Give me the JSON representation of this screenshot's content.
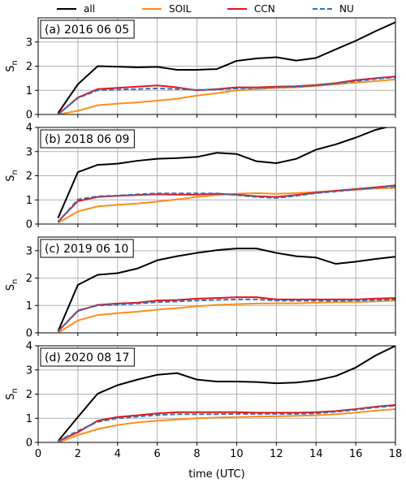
{
  "chart_data": {
    "type": "line",
    "xlabel": "time (UTC)",
    "ylabel": "S",
    "ylabel_subscript": "n",
    "xlim": [
      0,
      18
    ],
    "xticks": [
      "0",
      "2",
      "4",
      "6",
      "8",
      "10",
      "12",
      "14",
      "16",
      "18"
    ],
    "grid": true,
    "legend": {
      "placement": "top",
      "entries": [
        {
          "name": "all",
          "color": "#000000",
          "dash": "solid"
        },
        {
          "name": "SOIL",
          "color": "#ff8c1a",
          "dash": "solid"
        },
        {
          "name": "CCN",
          "color": "#e8101a",
          "dash": "solid"
        },
        {
          "name": "NU",
          "color": "#2f74b5",
          "dash": "dashed"
        }
      ]
    },
    "x": [
      1,
      2,
      3,
      4,
      5,
      6,
      7,
      8,
      9,
      10,
      11,
      12,
      13,
      14,
      15,
      16,
      17,
      18
    ],
    "panels": [
      {
        "label": "(a) 2016 06 05",
        "ylim": [
          0,
          4
        ],
        "yticks": [
          "0",
          "1",
          "2",
          "3"
        ],
        "series": [
          {
            "name": "all",
            "values": [
              0.05,
              1.25,
              2.0,
              1.98,
              1.95,
              1.97,
              1.85,
              1.85,
              1.88,
              2.22,
              2.32,
              2.37,
              2.23,
              2.34,
              2.7,
              3.05,
              3.45,
              3.82
            ]
          },
          {
            "name": "SOIL",
            "values": [
              0.0,
              0.15,
              0.38,
              0.45,
              0.5,
              0.57,
              0.65,
              0.78,
              0.88,
              1.0,
              1.05,
              1.1,
              1.12,
              1.18,
              1.25,
              1.32,
              1.38,
              1.45
            ]
          },
          {
            "name": "CCN",
            "values": [
              0.0,
              0.7,
              1.05,
              1.1,
              1.15,
              1.2,
              1.12,
              1.0,
              1.05,
              1.12,
              1.12,
              1.15,
              1.17,
              1.22,
              1.3,
              1.42,
              1.5,
              1.57
            ]
          },
          {
            "name": "NU",
            "values": [
              0.0,
              0.68,
              1.0,
              1.03,
              1.05,
              1.08,
              1.05,
              1.02,
              1.03,
              1.08,
              1.1,
              1.12,
              1.15,
              1.2,
              1.28,
              1.38,
              1.47,
              1.54
            ]
          }
        ]
      },
      {
        "label": "(b) 2018 06 09",
        "ylim": [
          0,
          4
        ],
        "yticks": [
          "0",
          "1",
          "2",
          "3",
          "4"
        ],
        "series": [
          {
            "name": "all",
            "values": [
              0.25,
              2.15,
              2.45,
              2.5,
              2.62,
              2.7,
              2.73,
              2.78,
              2.95,
              2.9,
              2.6,
              2.52,
              2.7,
              3.08,
              3.3,
              3.58,
              3.9,
              4.1
            ]
          },
          {
            "name": "SOIL",
            "values": [
              0.05,
              0.52,
              0.73,
              0.8,
              0.85,
              0.93,
              1.02,
              1.12,
              1.2,
              1.25,
              1.28,
              1.25,
              1.28,
              1.33,
              1.37,
              1.42,
              1.47,
              1.5
            ]
          },
          {
            "name": "CCN",
            "values": [
              0.1,
              0.95,
              1.12,
              1.17,
              1.2,
              1.23,
              1.22,
              1.22,
              1.25,
              1.22,
              1.15,
              1.12,
              1.2,
              1.3,
              1.38,
              1.45,
              1.52,
              1.6
            ]
          },
          {
            "name": "NU",
            "values": [
              0.08,
              1.02,
              1.15,
              1.18,
              1.23,
              1.27,
              1.27,
              1.27,
              1.27,
              1.2,
              1.12,
              1.08,
              1.17,
              1.28,
              1.35,
              1.43,
              1.5,
              1.57
            ]
          }
        ]
      },
      {
        "label": "(c) 2019 06 10",
        "ylim": [
          0,
          3.5
        ],
        "yticks": [
          "0",
          "1",
          "2",
          "3"
        ],
        "series": [
          {
            "name": "all",
            "values": [
              0.05,
              1.75,
              2.12,
              2.18,
              2.35,
              2.65,
              2.8,
              2.92,
              3.02,
              3.08,
              3.08,
              2.92,
              2.8,
              2.75,
              2.52,
              2.6,
              2.7,
              2.78
            ]
          },
          {
            "name": "SOIL",
            "values": [
              0.0,
              0.45,
              0.65,
              0.72,
              0.77,
              0.85,
              0.9,
              0.97,
              1.02,
              1.05,
              1.07,
              1.08,
              1.08,
              1.1,
              1.12,
              1.12,
              1.15,
              1.18
            ]
          },
          {
            "name": "CCN",
            "values": [
              0.05,
              0.8,
              1.02,
              1.07,
              1.1,
              1.18,
              1.2,
              1.25,
              1.27,
              1.3,
              1.3,
              1.22,
              1.22,
              1.22,
              1.22,
              1.22,
              1.25,
              1.27
            ]
          },
          {
            "name": "NU",
            "values": [
              0.05,
              0.82,
              1.0,
              1.03,
              1.07,
              1.12,
              1.15,
              1.18,
              1.2,
              1.22,
              1.22,
              1.18,
              1.17,
              1.17,
              1.17,
              1.18,
              1.2,
              1.22
            ]
          }
        ]
      },
      {
        "label": "(d) 2020 08 17",
        "ylim": [
          0,
          4
        ],
        "yticks": [
          "0",
          "1",
          "2",
          "3",
          "4"
        ],
        "series": [
          {
            "name": "all",
            "values": [
              0.05,
              1.05,
              2.02,
              2.37,
              2.6,
              2.8,
              2.87,
              2.6,
              2.52,
              2.52,
              2.5,
              2.45,
              2.48,
              2.57,
              2.75,
              3.1,
              3.6,
              4.0
            ]
          },
          {
            "name": "SOIL",
            "values": [
              0.0,
              0.3,
              0.55,
              0.72,
              0.83,
              0.9,
              0.95,
              1.0,
              1.03,
              1.05,
              1.07,
              1.08,
              1.1,
              1.12,
              1.17,
              1.23,
              1.32,
              1.38
            ]
          },
          {
            "name": "CCN",
            "values": [
              0.05,
              0.42,
              0.9,
              1.05,
              1.12,
              1.2,
              1.25,
              1.25,
              1.25,
              1.25,
              1.23,
              1.23,
              1.23,
              1.25,
              1.3,
              1.38,
              1.48,
              1.55
            ]
          },
          {
            "name": "NU",
            "values": [
              0.05,
              0.48,
              0.85,
              1.0,
              1.07,
              1.13,
              1.17,
              1.17,
              1.17,
              1.18,
              1.18,
              1.18,
              1.18,
              1.2,
              1.27,
              1.35,
              1.45,
              1.52
            ]
          }
        ]
      }
    ]
  }
}
